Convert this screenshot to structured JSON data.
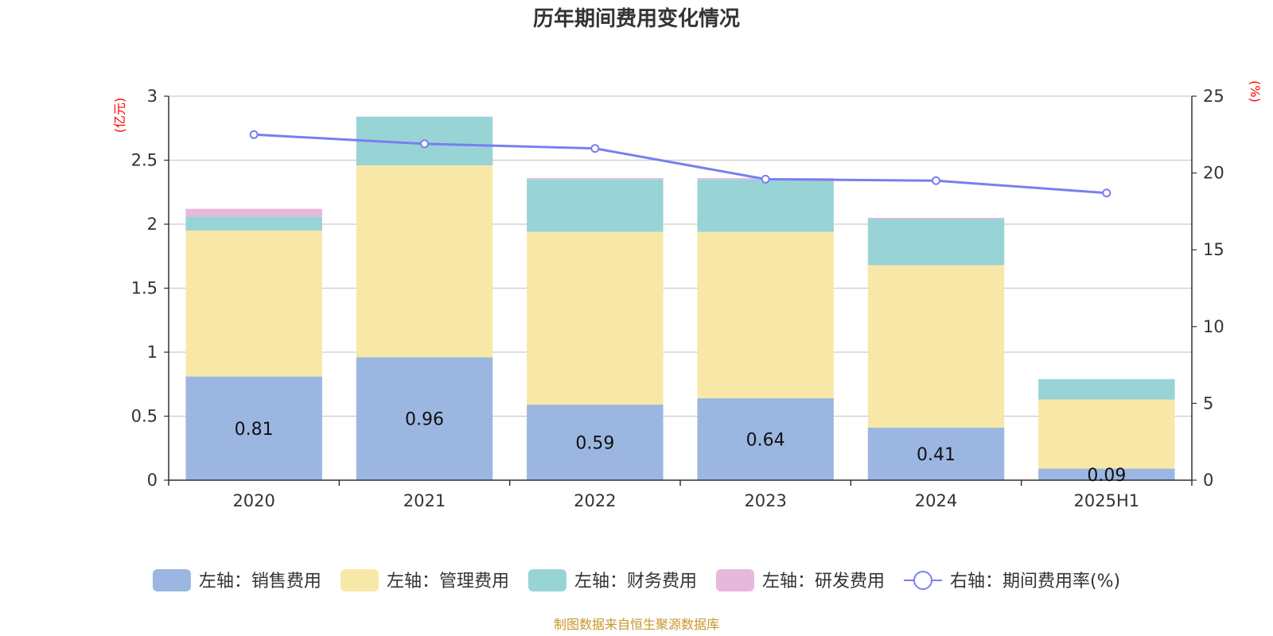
{
  "chart_data": {
    "type": "bar",
    "title": "历年期间费用变化情况",
    "categories": [
      "2020",
      "2021",
      "2022",
      "2023",
      "2024",
      "2025H1"
    ],
    "left_unit": "(亿元)",
    "right_unit": "(%)",
    "ylim_left": [
      0,
      3
    ],
    "yticks_left": [
      "0",
      "0.5",
      "1",
      "1.5",
      "2",
      "2.5",
      "3"
    ],
    "ylim_right": [
      0,
      25
    ],
    "yticks_right": [
      "0",
      "5",
      "10",
      "15",
      "20",
      "25"
    ],
    "grid": true,
    "legend_position": "bottom",
    "series": [
      {
        "name": "左轴：销售费用",
        "type": "bar",
        "color": "#9bb7e1",
        "values": [
          0.81,
          0.96,
          0.59,
          0.64,
          0.41,
          0.09
        ],
        "labels": [
          "0.81",
          "0.96",
          "0.59",
          "0.64",
          "0.41",
          "0.09"
        ]
      },
      {
        "name": "左轴：管理费用",
        "type": "bar",
        "color": "#f8e8a8",
        "values": [
          1.14,
          1.5,
          1.35,
          1.3,
          1.27,
          0.54
        ]
      },
      {
        "name": "左轴：财务费用",
        "type": "bar",
        "color": "#98d4d6",
        "values": [
          0.11,
          0.38,
          0.41,
          0.41,
          0.36,
          0.16
        ]
      },
      {
        "name": "左轴：研发费用",
        "type": "bar",
        "color": "#e8b8dc",
        "values": [
          0.06,
          0.0,
          0.01,
          0.01,
          0.01,
          0.0
        ]
      },
      {
        "name": "右轴：期间费用率(%)",
        "type": "line",
        "color": "#7a7ef0",
        "values": [
          22.5,
          21.9,
          21.6,
          19.6,
          19.5,
          18.7
        ]
      }
    ],
    "source": "制图数据来自恒生聚源数据库"
  }
}
